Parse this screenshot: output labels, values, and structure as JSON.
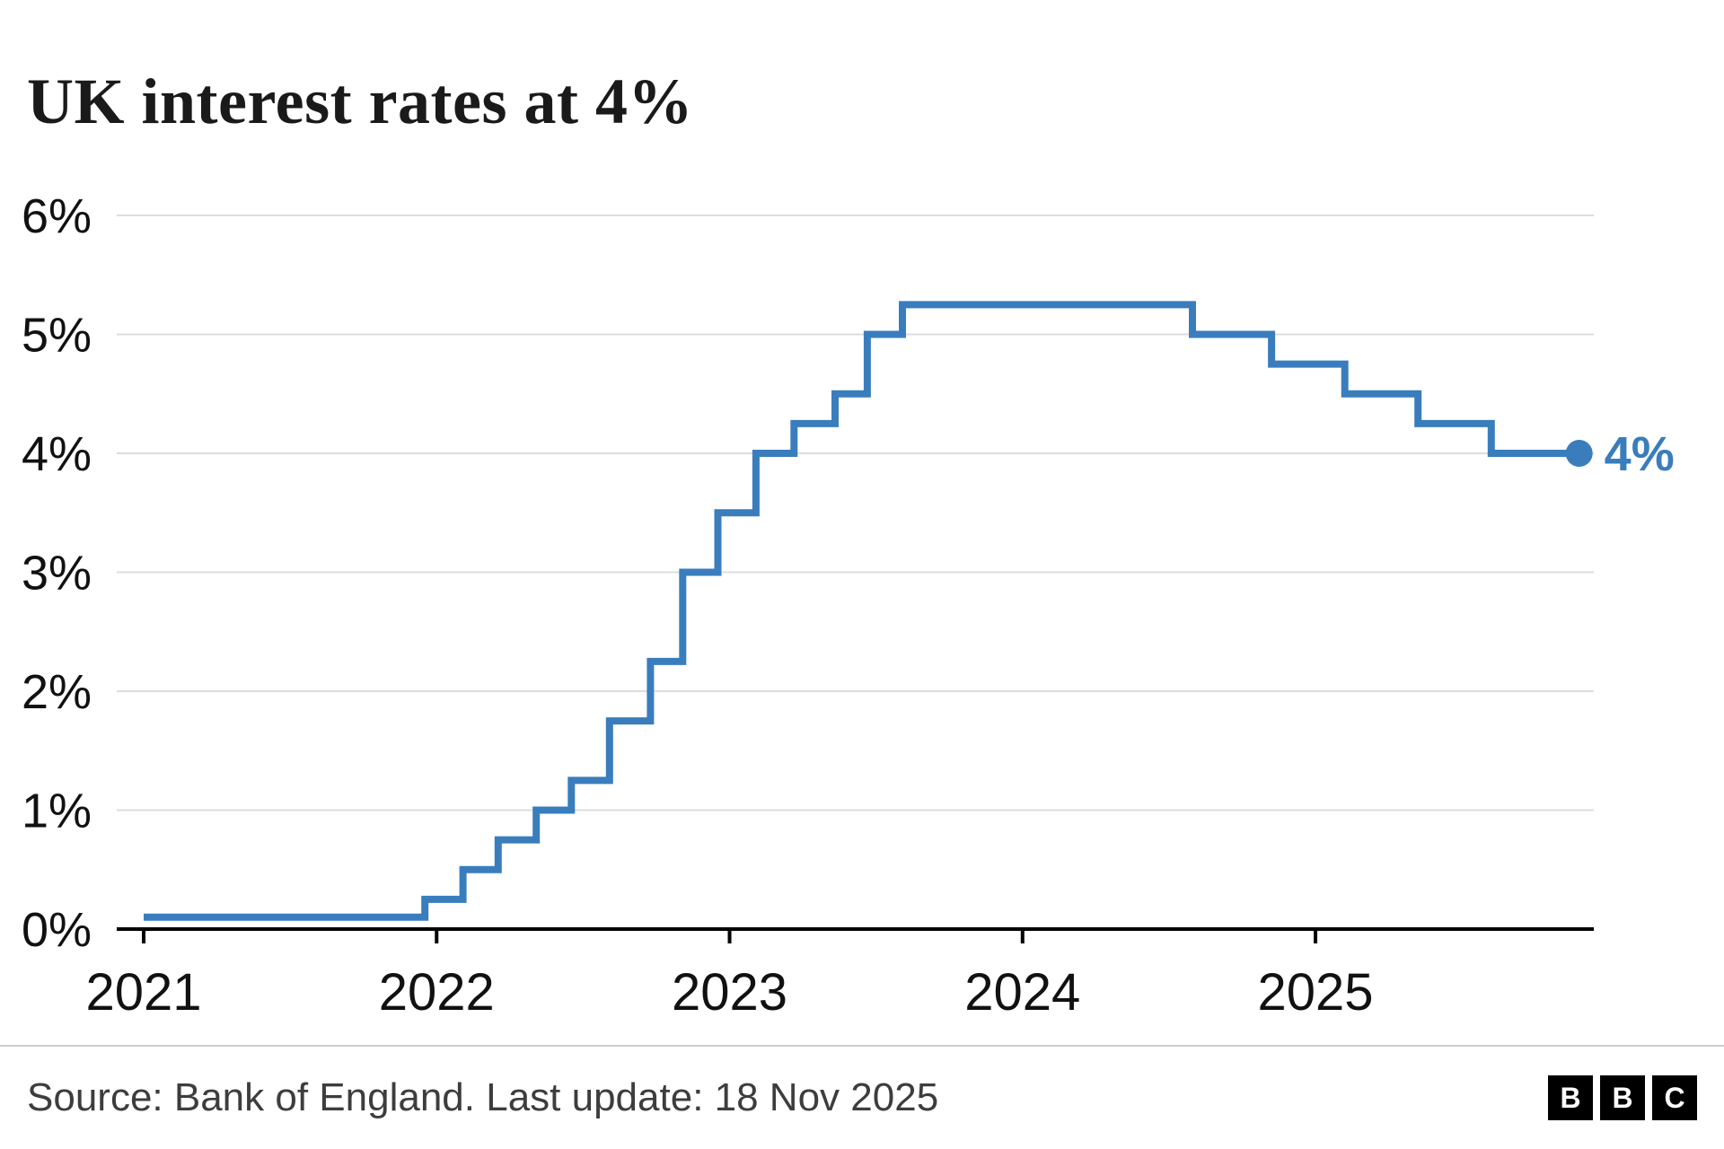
{
  "title": "UK interest rates at 4%",
  "footer": {
    "source": "Source: Bank of England. Last update: 18 Nov 2025",
    "logo": [
      "B",
      "B",
      "C"
    ]
  },
  "chart_data": {
    "type": "line",
    "step": true,
    "title": "UK interest rates at 4%",
    "xlabel": "",
    "ylabel": "",
    "xlim": [
      2021.0,
      2025.95
    ],
    "ylim": [
      0,
      6
    ],
    "x_ticks": [
      "2021",
      "2022",
      "2023",
      "2024",
      "2025"
    ],
    "x_tick_values": [
      2021,
      2022,
      2023,
      2024,
      2025
    ],
    "y_ticks": [
      "0%",
      "1%",
      "2%",
      "3%",
      "4%",
      "5%",
      "6%"
    ],
    "y_tick_values": [
      0,
      1,
      2,
      3,
      4,
      5,
      6
    ],
    "grid": true,
    "series": [
      {
        "name": "UK interest rate",
        "points": [
          [
            2021.0,
            0.1
          ],
          [
            2021.96,
            0.25
          ],
          [
            2022.09,
            0.5
          ],
          [
            2022.21,
            0.75
          ],
          [
            2022.34,
            1.0
          ],
          [
            2022.46,
            1.25
          ],
          [
            2022.59,
            1.75
          ],
          [
            2022.73,
            2.25
          ],
          [
            2022.84,
            3.0
          ],
          [
            2022.96,
            3.5
          ],
          [
            2023.09,
            4.0
          ],
          [
            2023.22,
            4.25
          ],
          [
            2023.36,
            4.5
          ],
          [
            2023.47,
            5.0
          ],
          [
            2023.59,
            5.25
          ],
          [
            2024.58,
            5.0
          ],
          [
            2024.85,
            4.75
          ],
          [
            2025.1,
            4.5
          ],
          [
            2025.35,
            4.25
          ],
          [
            2025.6,
            4.0
          ]
        ],
        "x_end": 2025.9,
        "end_value": 4.0
      }
    ],
    "end_label": "4%",
    "line_color": "#3a7dbd",
    "grid_color": "#dddddd",
    "axis_color": "#000000",
    "legend": "none"
  }
}
